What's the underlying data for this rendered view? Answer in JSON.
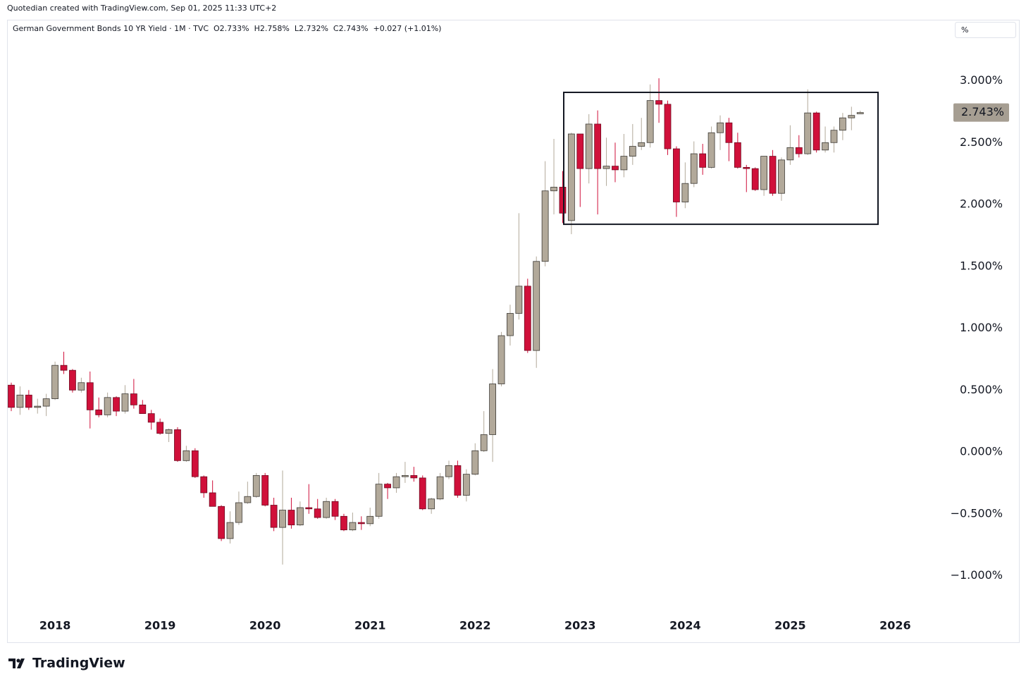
{
  "credit": "Quotedian created with TradingView.com, Sep 01, 2025 11:33 UTC+2",
  "brand": "TradingView",
  "chart_data": {
    "type": "candlestick",
    "legend": "German Government Bonds 10 YR Yield · 1M · TVC  O2.733%  H2.758%  L2.732%  C2.743%  +0.027 (+1.01%)",
    "unit_label": "%",
    "last_label": "2.743%",
    "up_color": "#b2a99a",
    "down_color": "#d0103a",
    "annotation_box": {
      "top": 2.906,
      "bottom": 1.84
    },
    "xticks": [
      "2018",
      "2019",
      "2020",
      "2021",
      "2022",
      "2023",
      "2024",
      "2025",
      "2026"
    ],
    "ylim": [
      -1.259,
      3.493
    ],
    "yticks": [
      {
        "value": -1,
        "label": "−1.000%"
      },
      {
        "value": -0.5,
        "label": "−0.500%"
      },
      {
        "value": 0,
        "label": "0.000%"
      },
      {
        "value": 0.5,
        "label": "0.500%"
      },
      {
        "value": 1,
        "label": "1.000%"
      },
      {
        "value": 1.5,
        "label": "1.500%"
      },
      {
        "value": 2,
        "label": "2.000%"
      },
      {
        "value": 2.5,
        "label": "2.500%"
      },
      {
        "value": 3,
        "label": "3.000%"
      }
    ],
    "open": [
      0.54,
      0.36,
      0.46,
      0.36,
      0.37,
      0.43,
      0.7,
      0.66,
      0.5,
      0.56,
      0.34,
      0.3,
      0.44,
      0.33,
      0.47,
      0.38,
      0.31,
      0.24,
      0.15,
      0.18,
      -0.07,
      0.01,
      -0.2,
      -0.33,
      -0.44,
      -0.7,
      -0.57,
      -0.41,
      -0.36,
      -0.19,
      -0.43,
      -0.61,
      -0.47,
      -0.59,
      -0.45,
      -0.46,
      -0.53,
      -0.4,
      -0.52,
      -0.63,
      -0.57,
      -0.58,
      -0.52,
      -0.26,
      -0.29,
      -0.2,
      -0.19,
      -0.21,
      -0.46,
      -0.38,
      -0.2,
      -0.11,
      -0.35,
      -0.18,
      0.01,
      0.14,
      0.55,
      0.94,
      1.12,
      1.34,
      0.82,
      1.54,
      2.11,
      2.14,
      1.87,
      2.57,
      2.29,
      2.65,
      2.29,
      2.31,
      2.28,
      2.39,
      2.47,
      2.5,
      2.84,
      2.81,
      2.45,
      2.02,
      2.17,
      2.41,
      2.3,
      2.58,
      2.66,
      2.5,
      2.3,
      2.29,
      2.12,
      2.39,
      2.09,
      2.36,
      2.46,
      2.41,
      2.74,
      2.44,
      2.5,
      2.6,
      2.7,
      2.733
    ],
    "high": [
      0.56,
      0.53,
      0.5,
      0.43,
      0.47,
      0.73,
      0.81,
      0.67,
      0.6,
      0.65,
      0.44,
      0.48,
      0.45,
      0.54,
      0.59,
      0.42,
      0.34,
      0.27,
      0.19,
      0.2,
      0.05,
      0.03,
      -0.19,
      -0.23,
      -0.43,
      -0.48,
      -0.32,
      -0.24,
      -0.17,
      -0.17,
      -0.37,
      -0.15,
      -0.37,
      -0.4,
      -0.26,
      -0.38,
      -0.37,
      -0.38,
      -0.5,
      -0.49,
      -0.52,
      -0.45,
      -0.17,
      -0.25,
      -0.17,
      -0.08,
      -0.12,
      -0.19,
      -0.37,
      -0.17,
      -0.07,
      -0.07,
      -0.14,
      0.07,
      0.33,
      0.67,
      0.97,
      1.19,
      1.93,
      1.4,
      1.58,
      2.35,
      2.53,
      2.27,
      2.58,
      2.57,
      2.73,
      2.76,
      2.54,
      2.5,
      2.57,
      2.65,
      2.7,
      2.97,
      3.02,
      2.84,
      2.47,
      2.34,
      2.51,
      2.49,
      2.63,
      2.72,
      2.7,
      2.58,
      2.32,
      2.3,
      2.39,
      2.44,
      2.38,
      2.64,
      2.56,
      2.93,
      2.75,
      2.63,
      2.63,
      2.74,
      2.79,
      2.758
    ],
    "low": [
      0.33,
      0.3,
      0.34,
      0.31,
      0.29,
      0.42,
      0.63,
      0.48,
      0.48,
      0.19,
      0.28,
      0.28,
      0.29,
      0.31,
      0.35,
      0.31,
      0.18,
      0.14,
      0.08,
      -0.08,
      -0.08,
      -0.21,
      -0.37,
      -0.44,
      -0.72,
      -0.74,
      -0.59,
      -0.42,
      -0.37,
      -0.44,
      -0.64,
      -0.91,
      -0.62,
      -0.6,
      -0.5,
      -0.54,
      -0.54,
      -0.55,
      -0.64,
      -0.64,
      -0.63,
      -0.6,
      -0.54,
      -0.38,
      -0.33,
      -0.25,
      -0.24,
      -0.47,
      -0.5,
      -0.39,
      -0.22,
      -0.37,
      -0.4,
      -0.19,
      0.0,
      -0.08,
      0.53,
      0.86,
      1.07,
      0.8,
      0.68,
      1.5,
      1.92,
      1.85,
      1.76,
      1.98,
      2.17,
      1.92,
      2.15,
      2.18,
      2.22,
      2.32,
      2.44,
      2.46,
      2.66,
      2.4,
      1.9,
      1.97,
      2.14,
      2.24,
      2.29,
      2.44,
      2.35,
      2.29,
      2.1,
      2.11,
      2.07,
      2.07,
      2.03,
      2.32,
      2.38,
      2.4,
      2.42,
      2.42,
      2.42,
      2.52,
      2.6,
      2.732
    ],
    "close": [
      0.36,
      0.46,
      0.36,
      0.37,
      0.43,
      0.7,
      0.66,
      0.5,
      0.56,
      0.34,
      0.3,
      0.44,
      0.33,
      0.47,
      0.38,
      0.31,
      0.24,
      0.15,
      0.18,
      -0.07,
      0.01,
      -0.2,
      -0.33,
      -0.44,
      -0.7,
      -0.57,
      -0.41,
      -0.36,
      -0.19,
      -0.43,
      -0.61,
      -0.47,
      -0.59,
      -0.45,
      -0.46,
      -0.53,
      -0.4,
      -0.52,
      -0.63,
      -0.57,
      -0.58,
      -0.52,
      -0.26,
      -0.29,
      -0.2,
      -0.19,
      -0.21,
      -0.46,
      -0.38,
      -0.2,
      -0.11,
      -0.35,
      -0.18,
      0.01,
      0.14,
      0.55,
      0.94,
      1.12,
      1.34,
      0.82,
      1.54,
      2.11,
      2.14,
      1.93,
      2.57,
      2.29,
      2.65,
      2.29,
      2.31,
      2.28,
      2.39,
      2.47,
      2.5,
      2.84,
      2.81,
      2.45,
      2.02,
      2.17,
      2.41,
      2.3,
      2.58,
      2.66,
      2.5,
      2.3,
      2.29,
      2.12,
      2.39,
      2.09,
      2.36,
      2.46,
      2.41,
      2.74,
      2.44,
      2.5,
      2.6,
      2.7,
      2.72,
      2.743
    ]
  }
}
